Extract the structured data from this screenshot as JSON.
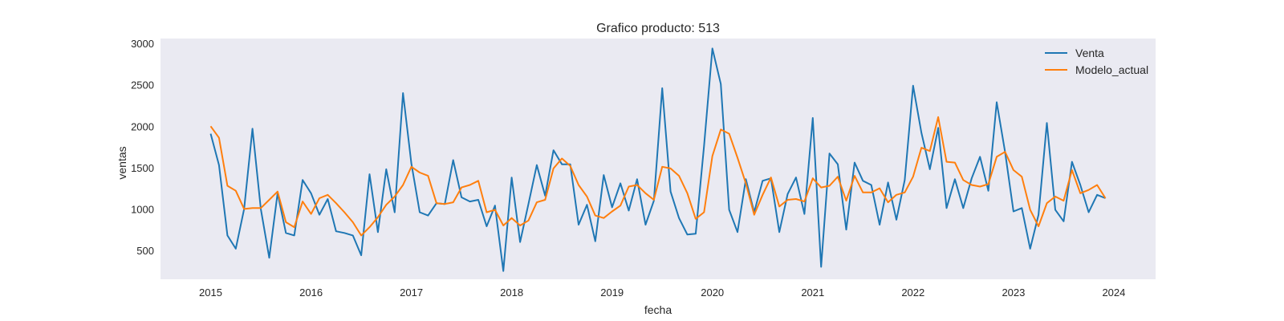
{
  "chart_data": {
    "type": "line",
    "title": "Grafico producto: 513",
    "xlabel": "fecha",
    "ylabel": "ventas",
    "x_start": "2015-01",
    "x_ticks": [
      "2015",
      "2016",
      "2017",
      "2018",
      "2019",
      "2020",
      "2021",
      "2022",
      "2023",
      "2024"
    ],
    "y_ticks": [
      500,
      1000,
      1500,
      2000,
      2500,
      3000
    ],
    "xlim": [
      "2014-07",
      "2024-06"
    ],
    "ylim": [
      150,
      3060
    ],
    "grid": false,
    "legend_position": "top-right",
    "background": "#eaeaf2",
    "series": [
      {
        "name": "Venta",
        "color": "#1f77b4",
        "values": [
          1910,
          1530,
          680,
          520,
          1000,
          1970,
          1000,
          410,
          1190,
          710,
          680,
          1350,
          1190,
          930,
          1120,
          730,
          710,
          680,
          440,
          1420,
          720,
          1480,
          960,
          2400,
          1550,
          960,
          920,
          1070,
          1060,
          1590,
          1140,
          1090,
          1110,
          790,
          1040,
          250,
          1380,
          600,
          1060,
          1530,
          1160,
          1710,
          1540,
          1540,
          810,
          1050,
          610,
          1410,
          1020,
          1310,
          980,
          1360,
          810,
          1100,
          2460,
          1210,
          890,
          690,
          700,
          1760,
          2940,
          2510,
          990,
          720,
          1360,
          960,
          1340,
          1370,
          720,
          1180,
          1380,
          940,
          2100,
          300,
          1670,
          1540,
          750,
          1560,
          1340,
          1290,
          810,
          1320,
          870,
          1350,
          2490,
          1920,
          1480,
          1980,
          1010,
          1360,
          1010,
          1370,
          1630,
          1220,
          2290,
          1690,
          970,
          1010,
          520,
          930,
          2040,
          990,
          850,
          1570,
          1290,
          960,
          1170,
          1130
        ]
      },
      {
        "name": "Modelo_actual",
        "color": "#ff7f0e",
        "values": [
          2000,
          1860,
          1280,
          1220,
          1000,
          1010,
          1010,
          1110,
          1210,
          840,
          780,
          1090,
          940,
          1130,
          1170,
          1070,
          960,
          840,
          680,
          780,
          900,
          1050,
          1150,
          1290,
          1510,
          1440,
          1400,
          1070,
          1060,
          1080,
          1260,
          1290,
          1340,
          960,
          990,
          800,
          890,
          800,
          860,
          1080,
          1110,
          1490,
          1610,
          1520,
          1290,
          1150,
          920,
          890,
          970,
          1040,
          1270,
          1290,
          1190,
          1110,
          1510,
          1490,
          1400,
          1190,
          880,
          960,
          1640,
          1960,
          1910,
          1620,
          1310,
          930,
          1170,
          1380,
          1030,
          1110,
          1120,
          1090,
          1370,
          1260,
          1280,
          1390,
          1100,
          1400,
          1200,
          1200,
          1250,
          1080,
          1170,
          1200,
          1390,
          1740,
          1700,
          2110,
          1570,
          1560,
          1350,
          1290,
          1270,
          1300,
          1630,
          1690,
          1470,
          1390,
          990,
          790,
          1070,
          1150,
          1100,
          1470,
          1190,
          1230,
          1290,
          1130
        ]
      }
    ]
  }
}
